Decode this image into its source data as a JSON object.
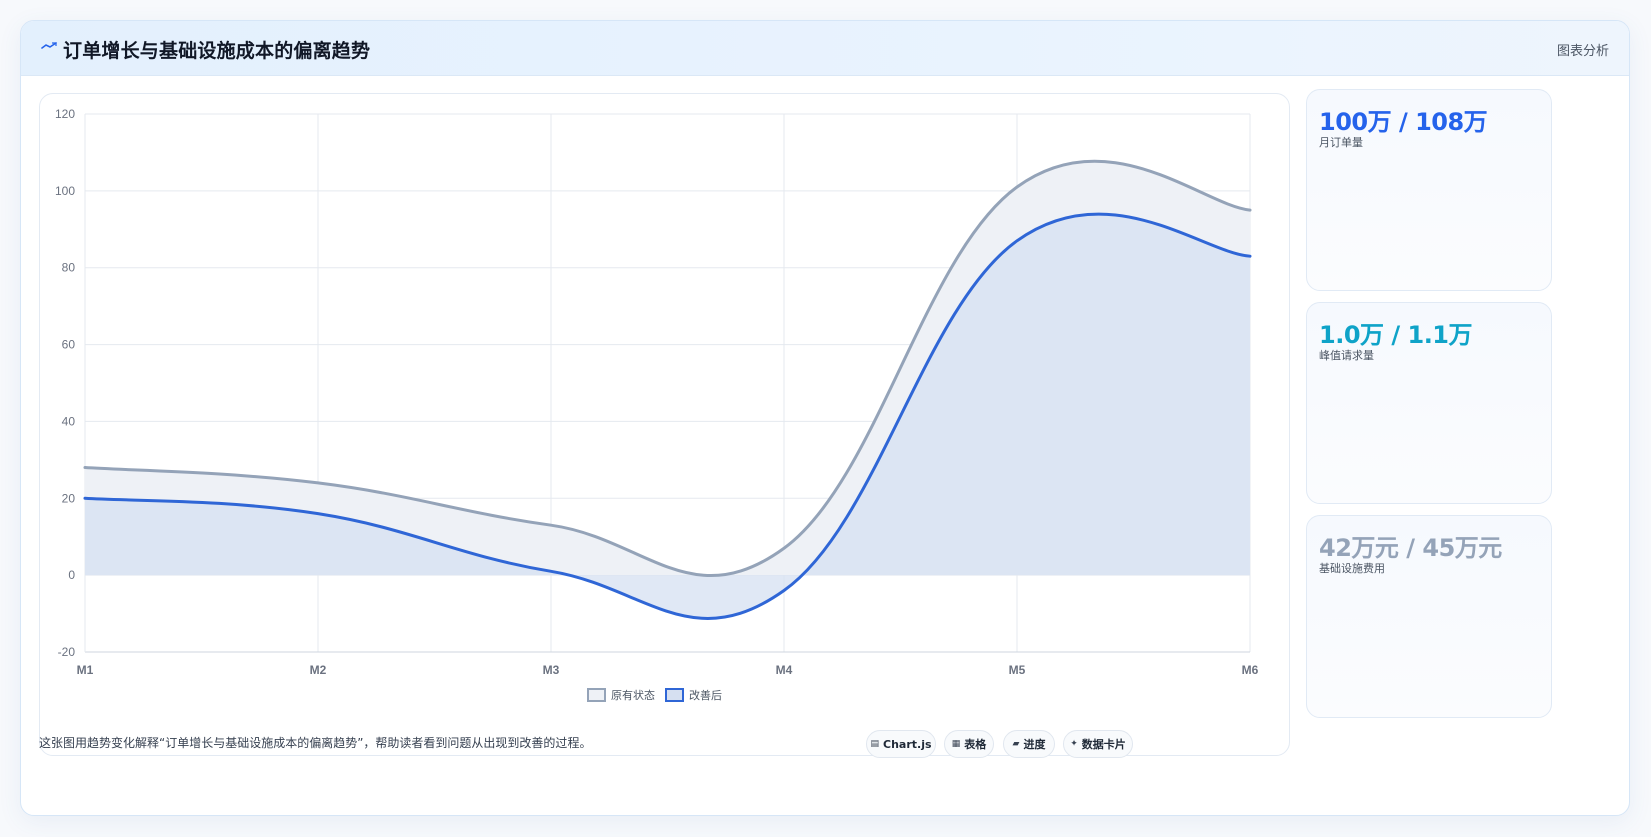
{
  "header": {
    "title": "订单增长与基础设施成本的偏离趋势",
    "link": "图表分析"
  },
  "stats": [
    {
      "value": "100万 / 108万",
      "label": "月订单量",
      "color": "#2563eb"
    },
    {
      "value": "1.0万 / 1.1万",
      "label": "峰值请求量",
      "color": "#0fa3c8"
    },
    {
      "value": "42万元 / 45万元",
      "label": "基础设施费用",
      "color": "#94a3b8"
    }
  ],
  "footer": {
    "text": "这张图用趋势变化解释“订单增长与基础设施成本的偏离趋势”，帮助读者看到问题从出现到改善的过程。"
  },
  "chips": [
    {
      "icon": "▤",
      "label": "Chart.js"
    },
    {
      "icon": "▦",
      "label": "表格"
    },
    {
      "icon": "▰",
      "label": "进度"
    },
    {
      "icon": "✦",
      "label": "数据卡片"
    }
  ],
  "chart_data": {
    "type": "area",
    "categories": [
      "M1",
      "M2",
      "M3",
      "M4",
      "M5",
      "M6"
    ],
    "series": [
      {
        "name": "原有状态",
        "values": [
          28,
          24,
          13,
          7,
          101,
          95
        ],
        "color": "#94a3b8",
        "fill": "#eef1f6"
      },
      {
        "name": "改善后",
        "values": [
          20,
          16,
          1,
          -4,
          87,
          83
        ],
        "color": "#2f66d6",
        "fill": "#d6e0f1"
      }
    ],
    "ylim": [
      -20,
      120
    ],
    "yticks": [
      -20,
      0,
      20,
      40,
      60,
      80,
      100,
      120
    ],
    "grid": true,
    "legend": "bottom"
  }
}
